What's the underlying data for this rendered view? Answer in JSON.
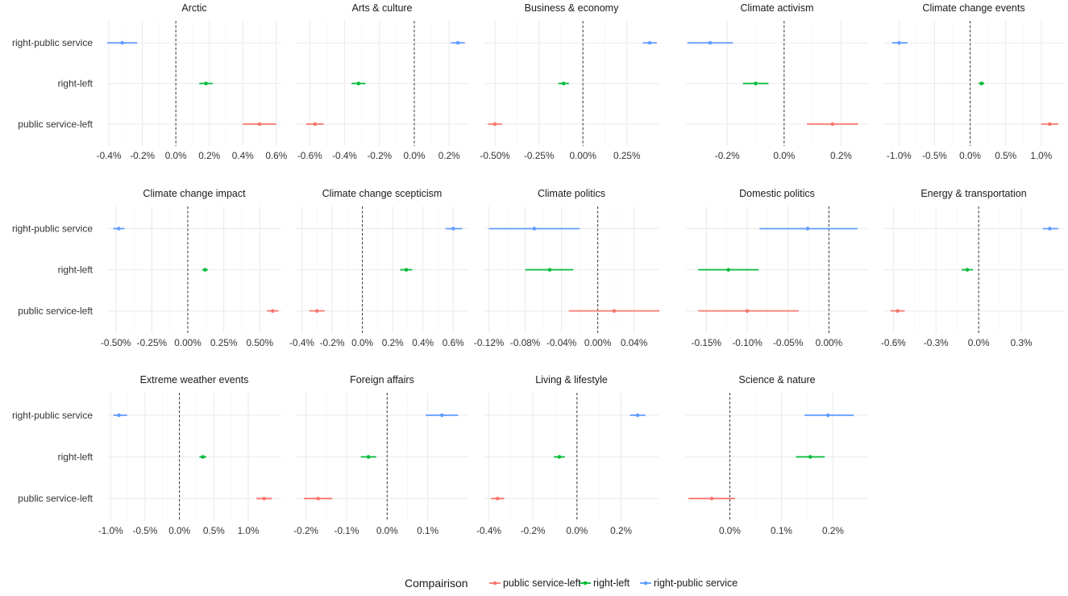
{
  "chart_data": {
    "type": "forest",
    "legend": {
      "title": "Compairison",
      "entries": [
        {
          "name": "public service-left",
          "color": "#F8766D"
        },
        {
          "name": "right-left",
          "color": "#00BA38"
        },
        {
          "name": "right-public service",
          "color": "#619CFF"
        }
      ]
    },
    "rows": [
      "right-public service",
      "right-left",
      "public service-left"
    ],
    "reference_line": 0,
    "panels": [
      {
        "title": "Arctic",
        "xlim": [
          -0.41,
          0.63
        ],
        "ticks": [
          -0.4,
          -0.2,
          0,
          0.2,
          0.4,
          0.6
        ],
        "tick_labels": [
          "-0.4%",
          "-0.2%",
          "0.0%",
          "0.2%",
          "0.4%",
          "0.6%"
        ],
        "estimates": [
          {
            "comparison": "right-public service",
            "est": -0.32,
            "lo": -0.41,
            "hi": -0.23
          },
          {
            "comparison": "right-left",
            "est": 0.18,
            "lo": 0.14,
            "hi": 0.22
          },
          {
            "comparison": "public service-left",
            "est": 0.5,
            "lo": 0.4,
            "hi": 0.6
          }
        ]
      },
      {
        "title": "Arts & culture",
        "xlim": [
          -0.68,
          0.31
        ],
        "ticks": [
          -0.6,
          -0.4,
          -0.2,
          0,
          0.2
        ],
        "tick_labels": [
          "-0.6%",
          "-0.4%",
          "-0.2%",
          "0.0%",
          "0.2%"
        ],
        "estimates": [
          {
            "comparison": "right-public service",
            "est": 0.25,
            "lo": 0.21,
            "hi": 0.29
          },
          {
            "comparison": "right-left",
            "est": -0.32,
            "lo": -0.36,
            "hi": -0.28
          },
          {
            "comparison": "public service-left",
            "est": -0.57,
            "lo": -0.62,
            "hi": -0.52
          }
        ]
      },
      {
        "title": "Business & economy",
        "xlim": [
          -0.56,
          0.43
        ],
        "ticks": [
          -0.5,
          -0.25,
          0,
          0.25
        ],
        "tick_labels": [
          "-0.50%",
          "-0.25%",
          "0.00%",
          "0.25%"
        ],
        "estimates": [
          {
            "comparison": "right-public service",
            "est": 0.38,
            "lo": 0.34,
            "hi": 0.42
          },
          {
            "comparison": "right-left",
            "est": -0.11,
            "lo": -0.14,
            "hi": -0.08
          },
          {
            "comparison": "public service-left",
            "est": -0.5,
            "lo": -0.54,
            "hi": -0.46
          }
        ]
      },
      {
        "title": "Climate activism",
        "xlim": [
          -0.345,
          0.295
        ],
        "ticks": [
          -0.2,
          0,
          0.2
        ],
        "tick_labels": [
          "-0.2%",
          "0.0%",
          "0.2%"
        ],
        "estimates": [
          {
            "comparison": "right-public service",
            "est": -0.26,
            "lo": -0.34,
            "hi": -0.18
          },
          {
            "comparison": "right-left",
            "est": -0.1,
            "lo": -0.145,
            "hi": -0.055
          },
          {
            "comparison": "public service-left",
            "est": 0.17,
            "lo": 0.08,
            "hi": 0.26
          }
        ]
      },
      {
        "title": "Climate change events",
        "xlim": [
          -1.22,
          1.32
        ],
        "ticks": [
          -1.0,
          -0.5,
          0,
          0.5,
          1.0
        ],
        "tick_labels": [
          "-1.0%",
          "-0.5%",
          "0.0%",
          "0.5%",
          "1.0%"
        ],
        "estimates": [
          {
            "comparison": "right-public service",
            "est": -1.0,
            "lo": -1.1,
            "hi": -0.88
          },
          {
            "comparison": "right-left",
            "est": 0.16,
            "lo": 0.12,
            "hi": 0.2
          },
          {
            "comparison": "public service-left",
            "est": 1.12,
            "lo": 1.0,
            "hi": 1.24
          }
        ]
      },
      {
        "title": "Climate change impact",
        "xlim": [
          -0.56,
          0.65
        ],
        "ticks": [
          -0.5,
          -0.25,
          0,
          0.25,
          0.5
        ],
        "tick_labels": [
          "-0.50%",
          "-0.25%",
          "0.00%",
          "0.25%",
          "0.50%"
        ],
        "estimates": [
          {
            "comparison": "right-public service",
            "est": -0.48,
            "lo": -0.52,
            "hi": -0.44
          },
          {
            "comparison": "right-left",
            "est": 0.12,
            "lo": 0.1,
            "hi": 0.14
          },
          {
            "comparison": "public service-left",
            "est": 0.59,
            "lo": 0.55,
            "hi": 0.63
          }
        ]
      },
      {
        "title": "Climate change scepticism",
        "xlim": [
          -0.44,
          0.7
        ],
        "ticks": [
          -0.4,
          -0.2,
          0,
          0.2,
          0.4,
          0.6
        ],
        "tick_labels": [
          "-0.4%",
          "-0.2%",
          "0.0%",
          "0.2%",
          "0.4%",
          "0.6%"
        ],
        "estimates": [
          {
            "comparison": "right-public service",
            "est": 0.6,
            "lo": 0.55,
            "hi": 0.66
          },
          {
            "comparison": "right-left",
            "est": 0.29,
            "lo": 0.25,
            "hi": 0.33
          },
          {
            "comparison": "public service-left",
            "est": -0.3,
            "lo": -0.35,
            "hi": -0.25
          }
        ]
      },
      {
        "title": "Climate politics",
        "xlim": [
          -0.125,
          0.067
        ],
        "ticks": [
          -0.12,
          -0.08,
          -0.04,
          0,
          0.04
        ],
        "tick_labels": [
          "-0.12%",
          "-0.08%",
          "-0.04%",
          "0.00%",
          "0.04%"
        ],
        "estimates": [
          {
            "comparison": "right-public service",
            "est": -0.07,
            "lo": -0.12,
            "hi": -0.02
          },
          {
            "comparison": "right-left",
            "est": -0.053,
            "lo": -0.08,
            "hi": -0.027
          },
          {
            "comparison": "public service-left",
            "est": 0.018,
            "lo": -0.032,
            "hi": 0.068
          }
        ]
      },
      {
        "title": "Domestic politics",
        "xlim": [
          -0.175,
          0.048
        ],
        "ticks": [
          -0.15,
          -0.1,
          -0.05,
          0
        ],
        "tick_labels": [
          "-0.15%",
          "-0.10%",
          "-0.05%",
          "0.00%"
        ],
        "estimates": [
          {
            "comparison": "right-public service",
            "est": -0.026,
            "lo": -0.085,
            "hi": 0.035
          },
          {
            "comparison": "right-left",
            "est": -0.123,
            "lo": -0.16,
            "hi": -0.086
          },
          {
            "comparison": "public service-left",
            "est": -0.1,
            "lo": -0.16,
            "hi": -0.037
          }
        ]
      },
      {
        "title": "Energy & transportation",
        "xlim": [
          -0.67,
          0.6
        ],
        "ticks": [
          -0.6,
          -0.3,
          0,
          0.3
        ],
        "tick_labels": [
          "-0.6%",
          "-0.3%",
          "0.0%",
          "0.3%"
        ],
        "estimates": [
          {
            "comparison": "right-public service",
            "est": 0.5,
            "lo": 0.45,
            "hi": 0.56
          },
          {
            "comparison": "right-left",
            "est": -0.08,
            "lo": -0.12,
            "hi": -0.04
          },
          {
            "comparison": "public service-left",
            "est": -0.57,
            "lo": -0.62,
            "hi": -0.52
          }
        ]
      },
      {
        "title": "Extreme weather events",
        "xlim": [
          -1.05,
          1.48
        ],
        "ticks": [
          -1.0,
          -0.5,
          0,
          0.5,
          1.0
        ],
        "tick_labels": [
          "-1.0%",
          "-0.5%",
          "0.0%",
          "0.5%",
          "1.0%"
        ],
        "estimates": [
          {
            "comparison": "right-public service",
            "est": -0.88,
            "lo": -0.96,
            "hi": -0.76
          },
          {
            "comparison": "right-left",
            "est": 0.34,
            "lo": 0.29,
            "hi": 0.39
          },
          {
            "comparison": "public service-left",
            "est": 1.23,
            "lo": 1.12,
            "hi": 1.34
          }
        ]
      },
      {
        "title": "Foreign affairs",
        "xlim": [
          -0.225,
          0.2
        ],
        "ticks": [
          -0.2,
          -0.1,
          0,
          0.1
        ],
        "tick_labels": [
          "-0.2%",
          "-0.1%",
          "0.0%",
          "0.1%"
        ],
        "estimates": [
          {
            "comparison": "right-public service",
            "est": 0.135,
            "lo": 0.095,
            "hi": 0.175
          },
          {
            "comparison": "right-left",
            "est": -0.046,
            "lo": -0.065,
            "hi": -0.027
          },
          {
            "comparison": "public service-left",
            "est": -0.17,
            "lo": -0.205,
            "hi": -0.135
          }
        ]
      },
      {
        "title": "Living & lifestyle",
        "xlim": [
          -0.42,
          0.37
        ],
        "ticks": [
          -0.4,
          -0.2,
          0,
          0.2
        ],
        "tick_labels": [
          "-0.4%",
          "-0.2%",
          "0.0%",
          "0.2%"
        ],
        "estimates": [
          {
            "comparison": "right-public service",
            "est": 0.275,
            "lo": 0.24,
            "hi": 0.31
          },
          {
            "comparison": "right-left",
            "est": -0.08,
            "lo": -0.105,
            "hi": -0.055
          },
          {
            "comparison": "public service-left",
            "est": -0.36,
            "lo": -0.39,
            "hi": -0.33
          }
        ]
      },
      {
        "title": "Science & nature",
        "xlim": [
          -0.085,
          0.268
        ],
        "ticks": [
          0,
          0.1,
          0.2
        ],
        "tick_labels": [
          "0.0%",
          "0.1%",
          "0.2%"
        ],
        "estimates": [
          {
            "comparison": "right-public service",
            "est": 0.19,
            "lo": 0.145,
            "hi": 0.24
          },
          {
            "comparison": "right-left",
            "est": 0.156,
            "lo": 0.128,
            "hi": 0.184
          },
          {
            "comparison": "public service-left",
            "est": -0.035,
            "lo": -0.08,
            "hi": 0.01
          }
        ]
      }
    ]
  }
}
